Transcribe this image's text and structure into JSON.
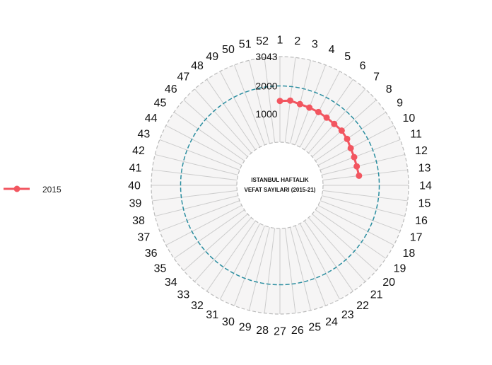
{
  "chart_data": {
    "type": "polar-line",
    "title_lines": [
      "ISTANBUL HAFTALIK",
      "VEFAT SAYILARI (2015-21)"
    ],
    "angular_labels": [
      "1",
      "2",
      "3",
      "4",
      "5",
      "6",
      "7",
      "8",
      "9",
      "10",
      "11",
      "12",
      "13",
      "14",
      "15",
      "16",
      "17",
      "18",
      "19",
      "20",
      "21",
      "22",
      "23",
      "24",
      "25",
      "26",
      "27",
      "28",
      "29",
      "30",
      "31",
      "32",
      "33",
      "34",
      "35",
      "36",
      "37",
      "38",
      "39",
      "40",
      "41",
      "42",
      "43",
      "44",
      "45",
      "46",
      "47",
      "48",
      "49",
      "50",
      "51",
      "52"
    ],
    "radial_ticks": [
      {
        "value": 1000,
        "label": "1000"
      },
      {
        "value": 2000,
        "label": "2000"
      },
      {
        "value": 3043,
        "label": "3043"
      }
    ],
    "radial_range": [
      0,
      3043
    ],
    "reference_line_value": 2000,
    "series": [
      {
        "name": "2015",
        "color": "#f25660",
        "weeks": [
          1,
          2,
          3,
          4,
          5,
          6,
          7,
          8,
          9,
          10,
          11,
          12,
          13
        ],
        "values": [
          1465,
          1500,
          1440,
          1420,
          1410,
          1390,
          1380,
          1400,
          1370,
          1310,
          1290,
          1280,
          1300
        ]
      }
    ],
    "legend": {
      "position": "left",
      "entries": [
        "2015"
      ]
    }
  },
  "colors": {
    "plot_background": "#f6f5f5",
    "grid": "#cccccc",
    "reference_line": "#2b8ea0",
    "series_2015": "#f25660"
  }
}
